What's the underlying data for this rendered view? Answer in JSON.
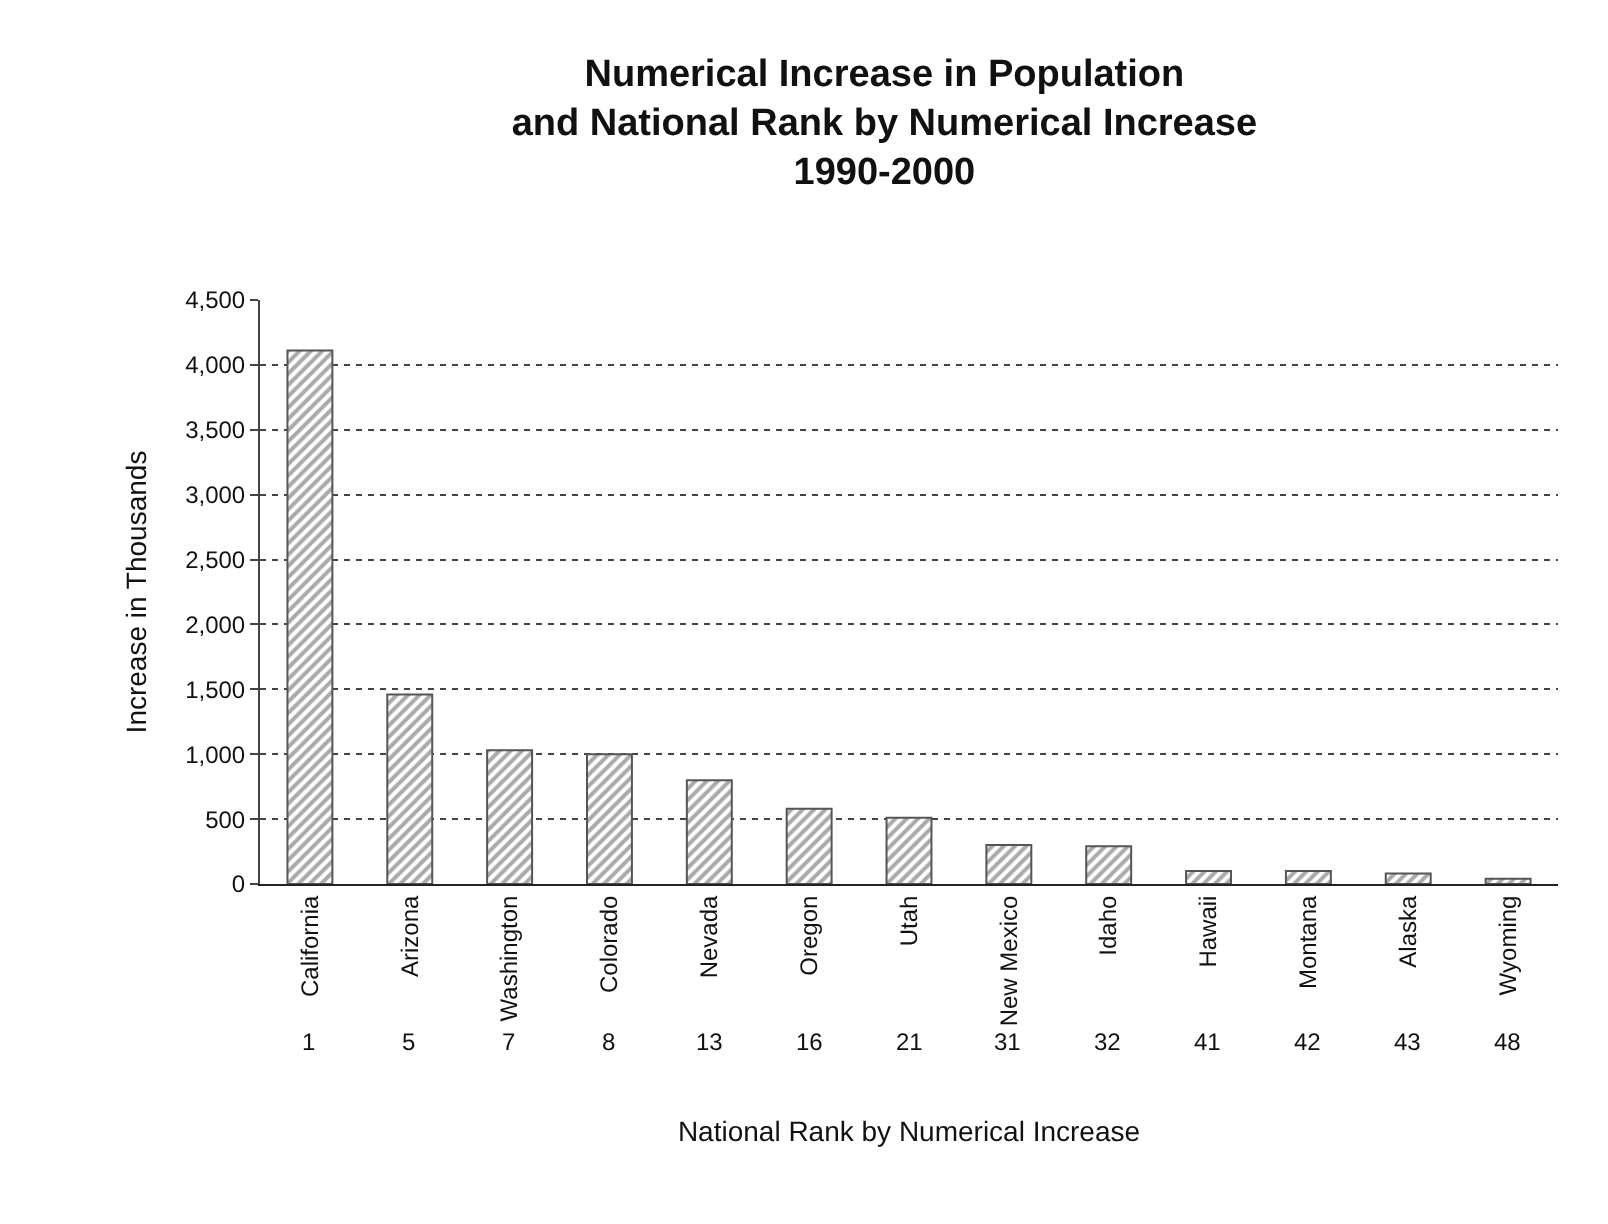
{
  "chart_data": {
    "type": "bar",
    "title": "Numerical Increase in Population\nand National Rank by Numerical Increase\n1990-2000",
    "xlabel": "National Rank by Numerical Increase",
    "ylabel": "Increase in Thousands",
    "categories": [
      "California",
      "Arizona",
      "Washington",
      "Colorado",
      "Nevada",
      "Oregon",
      "Utah",
      "New Mexico",
      "Idaho",
      "Hawaii",
      "Montana",
      "Alaska",
      "Wyoming"
    ],
    "values": [
      4110,
      1460,
      1030,
      1000,
      800,
      580,
      510,
      300,
      290,
      100,
      100,
      80,
      40
    ],
    "color": "#555555",
    "ylim": [
      0,
      4500
    ],
    "yticks": [
      {
        "value": 0,
        "label": "0"
      },
      {
        "value": 500,
        "label": "500"
      },
      {
        "value": 1000,
        "label": "1,000"
      },
      {
        "value": 1500,
        "label": "1,500"
      },
      {
        "value": 2000,
        "label": "2,000"
      },
      {
        "value": 2500,
        "label": "2,500"
      },
      {
        "value": 3000,
        "label": "3,000"
      },
      {
        "value": 3500,
        "label": "3,500"
      },
      {
        "value": 4000,
        "label": "4,000"
      },
      {
        "value": 4500,
        "label": "4,500"
      }
    ],
    "grid": "y",
    "legend": false,
    "annotations": [
      "1",
      "5",
      "7",
      "8",
      "13",
      "16",
      "21",
      "31",
      "32",
      "41",
      "42",
      "43",
      "48"
    ]
  }
}
